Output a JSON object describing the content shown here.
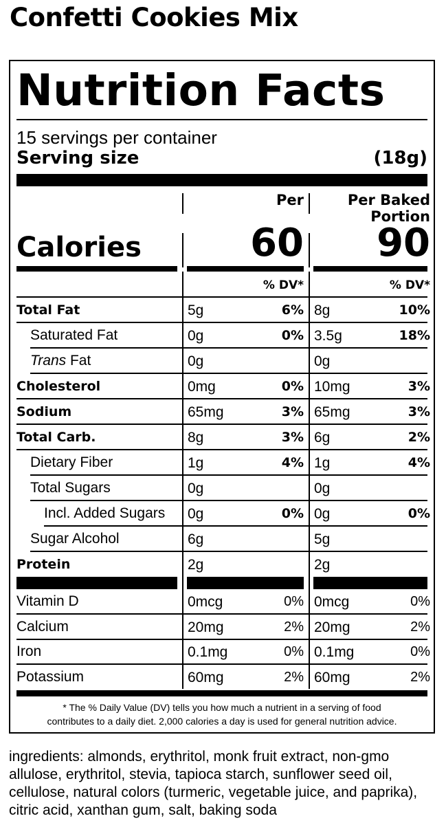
{
  "product_title": "Confetti Cookies Mix",
  "label": {
    "title": "Nutrition Facts",
    "servings_per_container": "15 servings per container",
    "serving_size_label": "Serving size",
    "serving_size_value": "(18g)",
    "col1_header": "Per",
    "col2_header_line1": "Per Baked",
    "col2_header_line2": "Portion",
    "calories_label": "Calories",
    "calories_per": "60",
    "calories_baked": "90",
    "dv_header": "% DV*",
    "nutrients": [
      {
        "name": "Total Fat",
        "style": "bold",
        "indent": 0,
        "amt1": "5g",
        "dv1": "6%",
        "amt2": "8g",
        "dv2": "10%"
      },
      {
        "name": "Saturated Fat",
        "style": "normal",
        "indent": 1,
        "amt1": "0g",
        "dv1": "0%",
        "amt2": "3.5g",
        "dv2": "18%"
      },
      {
        "name": "Trans Fat",
        "style": "trans",
        "indent": 1,
        "amt1": "0g",
        "dv1": "",
        "amt2": "0g",
        "dv2": ""
      },
      {
        "name": "Cholesterol",
        "style": "bold",
        "indent": 0,
        "amt1": "0mg",
        "dv1": "0%",
        "amt2": "10mg",
        "dv2": "3%"
      },
      {
        "name": "Sodium",
        "style": "bold",
        "indent": 0,
        "amt1": "65mg",
        "dv1": "3%",
        "amt2": "65mg",
        "dv2": "3%"
      },
      {
        "name": "Total Carb.",
        "style": "bold",
        "indent": 0,
        "amt1": "8g",
        "dv1": "3%",
        "amt2": "6g",
        "dv2": "2%"
      },
      {
        "name": "Dietary Fiber",
        "style": "normal",
        "indent": 1,
        "amt1": "1g",
        "dv1": "4%",
        "amt2": "1g",
        "dv2": "4%"
      },
      {
        "name": "Total Sugars",
        "style": "normal",
        "indent": 1,
        "amt1": "0g",
        "dv1": "",
        "amt2": "0g",
        "dv2": ""
      },
      {
        "name": "Incl. Added Sugars",
        "style": "normal",
        "indent": 2,
        "amt1": "0g",
        "dv1": "0%",
        "amt2": "0g",
        "dv2": "0%"
      },
      {
        "name": "Sugar Alcohol",
        "style": "normal",
        "indent": 1,
        "amt1": "6g",
        "dv1": "",
        "amt2": "5g",
        "dv2": ""
      },
      {
        "name": "Protein",
        "style": "bold",
        "indent": 0,
        "amt1": "2g",
        "dv1": "",
        "amt2": "2g",
        "dv2": ""
      }
    ],
    "vitamins": [
      {
        "name": "Vitamin D",
        "amt1": "0mcg",
        "dv1": "0%",
        "amt2": "0mcg",
        "dv2": "0%"
      },
      {
        "name": "Calcium",
        "amt1": "20mg",
        "dv1": "2%",
        "amt2": "20mg",
        "dv2": "2%"
      },
      {
        "name": "Iron",
        "amt1": "0.1mg",
        "dv1": "0%",
        "amt2": "0.1mg",
        "dv2": "0%"
      },
      {
        "name": "Potassium",
        "amt1": "60mg",
        "dv1": "2%",
        "amt2": "60mg",
        "dv2": "2%"
      }
    ],
    "footnote_line1": "* The % Daily Value (DV) tells you how much a nutrient in a serving of food",
    "footnote_line2": "contributes to a daily diet. 2,000 calories a day is used for general nutrition advice."
  },
  "ingredients": "ingredients: almonds, erythritol, monk fruit extract, non-gmo allulose, erythritol, stevia, tapioca starch, sunflower seed oil, cellulose, natural colors (turmeric, vegetable juice, and paprika), citric acid, xanthan gum, salt, baking soda"
}
